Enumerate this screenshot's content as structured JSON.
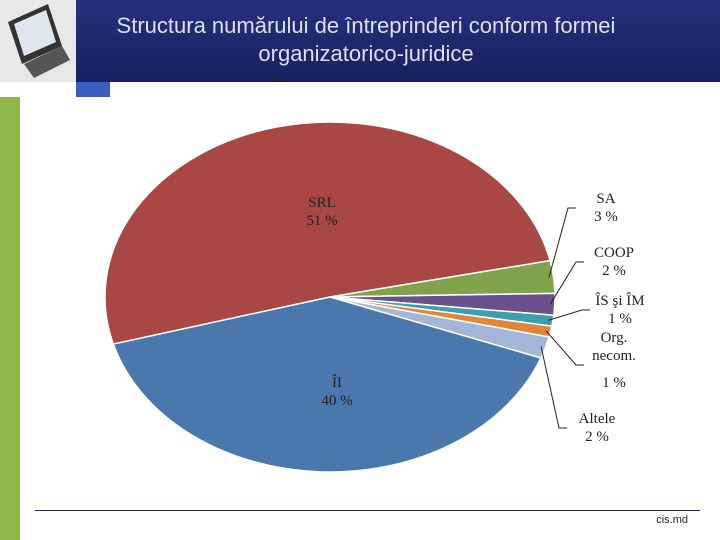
{
  "chart_data": {
    "type": "pie",
    "title": "Structura numărului de întreprinderi conform formei organizatorico-juridice",
    "categories": [
      "SRL",
      "SA",
      "COOP",
      "ÎS şi ÎM",
      "Org. necom.",
      "Altele",
      "ÎI"
    ],
    "values": [
      51,
      3,
      2,
      1,
      1,
      2,
      40
    ],
    "value_labels": [
      "51 %",
      "3 %",
      "2 %",
      "1 %",
      "1 %",
      "2 %",
      "40 %"
    ],
    "colors": [
      "#a84744",
      "#7fa24a",
      "#6a508c",
      "#3aa0ad",
      "#e0863a",
      "#a4b6d8",
      "#4a78ad"
    ]
  },
  "footer": {
    "text": "cis.md"
  }
}
